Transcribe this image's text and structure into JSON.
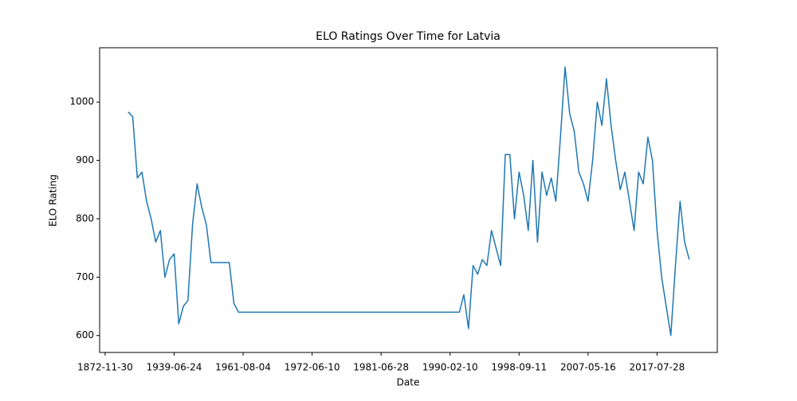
{
  "chart_data": {
    "type": "line",
    "title": "ELO Ratings Over Time for Latvia",
    "xlabel": "Date",
    "ylabel": "ELO Rating",
    "categories": [
      "1872-11-30",
      null,
      null,
      null,
      null,
      null,
      null,
      null,
      null,
      null,
      null,
      null,
      null,
      null,
      null,
      "1939-06-24",
      null,
      null,
      null,
      null,
      null,
      null,
      null,
      null,
      null,
      null,
      null,
      null,
      null,
      null,
      "1961-08-04",
      null,
      null,
      null,
      null,
      null,
      null,
      null,
      null,
      null,
      null,
      null,
      null,
      null,
      null,
      "1972-06-10",
      null,
      null,
      null,
      null,
      null,
      null,
      null,
      null,
      null,
      null,
      null,
      null,
      null,
      null,
      "1981-06-28",
      null,
      null,
      null,
      null,
      null,
      null,
      null,
      null,
      null,
      null,
      null,
      null,
      null,
      null,
      "1990-02-10",
      null,
      null,
      null,
      null,
      null,
      null,
      null,
      null,
      null,
      null,
      null,
      null,
      null,
      null,
      "1998-09-11",
      null,
      null,
      null,
      null,
      null,
      null,
      null,
      null,
      null,
      null,
      null,
      null,
      null,
      null,
      "2007-05-16",
      null,
      null,
      null,
      null,
      null,
      null,
      null,
      null,
      null,
      null,
      null,
      null,
      null,
      null,
      "2017-07-28",
      null,
      null,
      null,
      null,
      null,
      null,
      null
    ],
    "series": [
      {
        "name": "Latvia",
        "color": "#1f77b4",
        "values": [
          null,
          null,
          null,
          null,
          null,
          983,
          975,
          870,
          880,
          830,
          800,
          760,
          780,
          700,
          730,
          740,
          620,
          650,
          660,
          790,
          860,
          820,
          790,
          725,
          725,
          725,
          725,
          725,
          655,
          640,
          640,
          640,
          640,
          640,
          640,
          640,
          640,
          640,
          640,
          640,
          640,
          640,
          640,
          640,
          640,
          640,
          640,
          640,
          640,
          640,
          640,
          640,
          640,
          640,
          640,
          640,
          640,
          640,
          640,
          640,
          640,
          640,
          640,
          640,
          640,
          640,
          640,
          640,
          640,
          640,
          640,
          640,
          640,
          640,
          640,
          640,
          640,
          640,
          670,
          612,
          720,
          705,
          730,
          720,
          780,
          750,
          720,
          910,
          910,
          800,
          880,
          840,
          780,
          900,
          760,
          880,
          840,
          870,
          830,
          940,
          1060,
          980,
          950,
          880,
          860,
          830,
          900,
          1000,
          960,
          1040,
          960,
          900,
          850,
          880,
          830,
          780,
          880,
          860,
          940,
          900,
          780,
          700,
          650,
          600,
          720,
          830,
          760,
          730
        ]
      }
    ],
    "ylim": [
      571,
      1093
    ],
    "yticks": [
      600,
      700,
      800,
      900,
      1000
    ],
    "grid": false
  }
}
